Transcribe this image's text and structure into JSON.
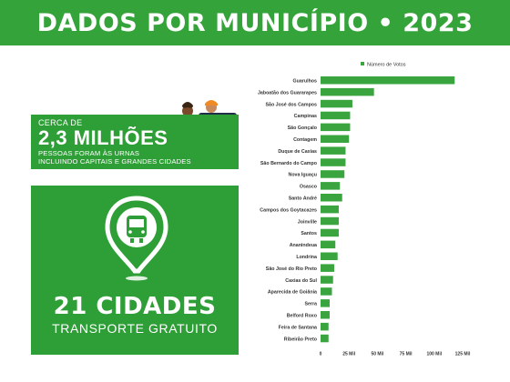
{
  "header": {
    "title": "DADOS POR MUNICÍPIO • 2023"
  },
  "voters_card": {
    "prefix": "CERCA DE",
    "headline": "2,3 MILHÕES",
    "line1": "PESSOAS FORAM ÀS URNAS",
    "line2": "INCLUINDO CAPITAIS E GRANDES CIDADES"
  },
  "cities_card": {
    "icon": "bus-location-pin-icon",
    "headline": "21 CIDADES",
    "subtitle": "TRANSPORTE GRATUITO"
  },
  "colors": {
    "brand_green": "#33a33a",
    "bar_green": "#3aa53f"
  },
  "chart_data": {
    "type": "bar",
    "orientation": "horizontal",
    "categories": [
      "Guarulhos",
      "Jaboatão dos Guararapes",
      "São José dos Campos",
      "Campinas",
      "São Gonçalo",
      "Contagem",
      "Duque de Caxias",
      "São Bernardo do Campo",
      "Nova Iguaçu",
      "Osasco",
      "Santo André",
      "Campos dos Goytacazes",
      "Joinville",
      "Santos",
      "Ananindeua",
      "Londrina",
      "São José do Rio Preto",
      "Caxias do Sul",
      "Aparecida de Goiânia",
      "Serra",
      "Belford Roxo",
      "Feira de Santana",
      "Ribeirão Preto"
    ],
    "series": [
      {
        "name": "Número de Votos",
        "values": [
          118000,
          47000,
          28000,
          26000,
          26000,
          25000,
          22000,
          22000,
          21000,
          17000,
          19000,
          16000,
          16000,
          16000,
          13000,
          15000,
          12000,
          11000,
          10000,
          8000,
          8000,
          7000,
          7000
        ]
      }
    ],
    "xlim": [
      0,
      125000
    ],
    "xticks": [
      0,
      25000,
      50000,
      75000,
      100000,
      125000
    ],
    "xtick_labels": [
      "0",
      "25 Mil",
      "50 Mil",
      "75 Mil",
      "100 Mil",
      "125 Mil"
    ],
    "legend": "top",
    "grid": false
  }
}
